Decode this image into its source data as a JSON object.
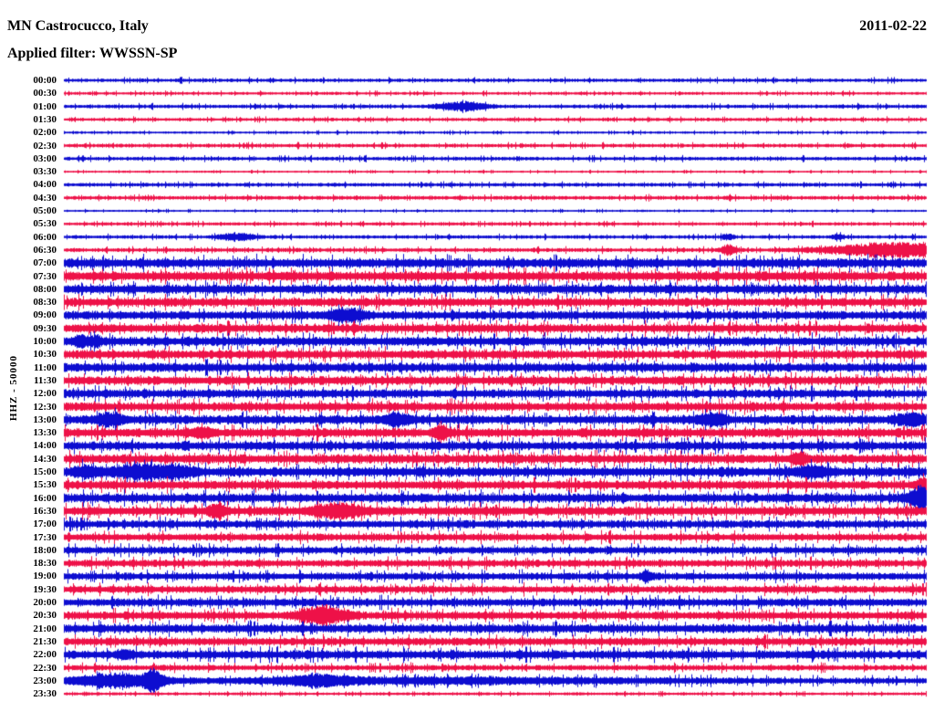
{
  "header": {
    "station": "MN Castrocucco, Italy",
    "date": "2011-02-22",
    "filter": "Applied filter: WWSSN-SP"
  },
  "colors": {
    "blue": "#0d0dd0",
    "red": "#ee1148",
    "text": "#000000",
    "background": "#ffffff"
  },
  "chart_data": {
    "type": "line",
    "subtype": "helicorder-seismogram",
    "title": "MN Castrocucco, Italy",
    "date": "2011-02-22",
    "filter": "WWSSN-SP",
    "ylabel": "HHZ - 50000",
    "row_duration_minutes": 30,
    "legend": "alternating blue/red half-hour traces, 48 rows 00:00-23:30",
    "rows": [
      {
        "time": "00:00",
        "color": "blue",
        "amp": 2.0,
        "events": []
      },
      {
        "time": "00:30",
        "color": "red",
        "amp": 1.7,
        "events": []
      },
      {
        "time": "01:00",
        "color": "blue",
        "amp": 2.1,
        "events": [
          {
            "t": 13.9,
            "amp": 4.5,
            "w": 1.6
          }
        ]
      },
      {
        "time": "01:30",
        "color": "red",
        "amp": 1.9,
        "events": []
      },
      {
        "time": "02:00",
        "color": "blue",
        "amp": 1.4,
        "events": []
      },
      {
        "time": "02:30",
        "color": "red",
        "amp": 2.1,
        "events": []
      },
      {
        "time": "03:00",
        "color": "blue",
        "amp": 2.1,
        "events": []
      },
      {
        "time": "03:30",
        "color": "red",
        "amp": 1.2,
        "events": []
      },
      {
        "time": "04:00",
        "color": "blue",
        "amp": 2.1,
        "events": []
      },
      {
        "time": "04:30",
        "color": "red",
        "amp": 2.2,
        "events": []
      },
      {
        "time": "05:00",
        "color": "blue",
        "amp": 1.2,
        "events": []
      },
      {
        "time": "05:30",
        "color": "red",
        "amp": 1.9,
        "events": []
      },
      {
        "time": "06:00",
        "color": "blue",
        "amp": 2.0,
        "events": [
          {
            "t": 6.0,
            "amp": 3.5,
            "w": 1.2
          },
          {
            "t": 23.1,
            "amp": 2.5,
            "w": 0.4
          },
          {
            "t": 26.9,
            "amp": 2.5,
            "w": 0.4
          }
        ]
      },
      {
        "time": "06:30",
        "color": "red",
        "amp": 2.3,
        "events": [
          {
            "t": 23.1,
            "amp": 5.5,
            "w": 0.5
          },
          {
            "t": 28.9,
            "amp": 7.5,
            "w": 4.5
          }
        ]
      },
      {
        "time": "07:00",
        "color": "blue",
        "amp": 5.5,
        "events": []
      },
      {
        "time": "07:30",
        "color": "red",
        "amp": 5.5,
        "events": []
      },
      {
        "time": "08:00",
        "color": "blue",
        "amp": 5.2,
        "events": []
      },
      {
        "time": "08:30",
        "color": "red",
        "amp": 5.0,
        "events": []
      },
      {
        "time": "09:00",
        "color": "blue",
        "amp": 5.0,
        "events": [
          {
            "t": 9.8,
            "amp": 5.5,
            "w": 1.2
          }
        ]
      },
      {
        "time": "09:30",
        "color": "red",
        "amp": 5.0,
        "events": []
      },
      {
        "time": "10:00",
        "color": "blue",
        "amp": 5.2,
        "events": [
          {
            "t": 0.6,
            "amp": 5.0,
            "w": 0.5
          },
          {
            "t": 1.1,
            "amp": 4.0,
            "w": 0.4
          }
        ]
      },
      {
        "time": "10:30",
        "color": "red",
        "amp": 5.0,
        "events": []
      },
      {
        "time": "11:00",
        "color": "blue",
        "amp": 5.2,
        "events": []
      },
      {
        "time": "11:30",
        "color": "red",
        "amp": 5.0,
        "events": []
      },
      {
        "time": "12:00",
        "color": "blue",
        "amp": 5.0,
        "events": []
      },
      {
        "time": "12:30",
        "color": "red",
        "amp": 5.0,
        "events": []
      },
      {
        "time": "13:00",
        "color": "blue",
        "amp": 5.2,
        "events": [
          {
            "t": 1.6,
            "amp": 5.5,
            "w": 1.0
          },
          {
            "t": 11.6,
            "amp": 5.5,
            "w": 0.9
          },
          {
            "t": 22.5,
            "amp": 5.0,
            "w": 1.0
          },
          {
            "t": 29.5,
            "amp": 5.5,
            "w": 0.9
          }
        ]
      },
      {
        "time": "13:30",
        "color": "red",
        "amp": 5.2,
        "events": [
          {
            "t": 4.8,
            "amp": 4.5,
            "w": 0.8
          },
          {
            "t": 13.1,
            "amp": 7.0,
            "w": 0.5
          }
        ]
      },
      {
        "time": "14:00",
        "color": "blue",
        "amp": 5.0,
        "events": []
      },
      {
        "time": "14:30",
        "color": "red",
        "amp": 5.2,
        "events": [
          {
            "t": 25.6,
            "amp": 7.0,
            "w": 0.5
          }
        ]
      },
      {
        "time": "15:00",
        "color": "blue",
        "amp": 5.5,
        "events": [
          {
            "t": 0.8,
            "amp": 5.0,
            "w": 0.8
          },
          {
            "t": 2.7,
            "amp": 6.0,
            "w": 1.8
          },
          {
            "t": 4.0,
            "amp": 4.0,
            "w": 1.2
          },
          {
            "t": 26.0,
            "amp": 4.5,
            "w": 1.2
          }
        ]
      },
      {
        "time": "15:30",
        "color": "red",
        "amp": 5.0,
        "events": [
          {
            "t": 29.9,
            "amp": 6.0,
            "w": 0.5
          }
        ]
      },
      {
        "time": "16:00",
        "color": "blue",
        "amp": 5.2,
        "events": [
          {
            "t": 29.8,
            "amp": 11.0,
            "w": 0.8
          }
        ]
      },
      {
        "time": "16:30",
        "color": "red",
        "amp": 5.2,
        "events": [
          {
            "t": 5.3,
            "amp": 6.5,
            "w": 0.6
          },
          {
            "t": 9.5,
            "amp": 6.5,
            "w": 1.6
          }
        ]
      },
      {
        "time": "17:00",
        "color": "blue",
        "amp": 4.6,
        "events": []
      },
      {
        "time": "17:30",
        "color": "red",
        "amp": 4.2,
        "events": []
      },
      {
        "time": "18:00",
        "color": "blue",
        "amp": 4.2,
        "events": []
      },
      {
        "time": "18:30",
        "color": "red",
        "amp": 4.2,
        "events": []
      },
      {
        "time": "19:00",
        "color": "blue",
        "amp": 4.2,
        "events": [
          {
            "t": 20.3,
            "amp": 5.0,
            "w": 0.4
          }
        ]
      },
      {
        "time": "19:30",
        "color": "red",
        "amp": 4.2,
        "events": []
      },
      {
        "time": "20:00",
        "color": "blue",
        "amp": 4.6,
        "events": []
      },
      {
        "time": "20:30",
        "color": "red",
        "amp": 4.6,
        "events": [
          {
            "t": 9.0,
            "amp": 9.0,
            "w": 1.6
          }
        ]
      },
      {
        "time": "21:00",
        "color": "blue",
        "amp": 5.0,
        "events": []
      },
      {
        "time": "21:30",
        "color": "red",
        "amp": 4.6,
        "events": []
      },
      {
        "time": "22:00",
        "color": "blue",
        "amp": 5.0,
        "events": [
          {
            "t": 2.1,
            "amp": 4.0,
            "w": 0.5
          }
        ]
      },
      {
        "time": "22:30",
        "color": "red",
        "amp": 3.2,
        "events": []
      },
      {
        "time": "23:00",
        "color": "blue",
        "amp": 3.5,
        "events": [
          {
            "t": 1.8,
            "amp": 6.0,
            "w": 3.0
          },
          {
            "t": 3.1,
            "amp": 9.5,
            "w": 0.6
          },
          {
            "t": 8.8,
            "amp": 4.5,
            "w": 2.2
          },
          {
            "t": 13.0,
            "amp": 2.2,
            "w": 16.0
          }
        ]
      },
      {
        "time": "23:30",
        "color": "red",
        "amp": 1.7,
        "events": []
      }
    ]
  }
}
